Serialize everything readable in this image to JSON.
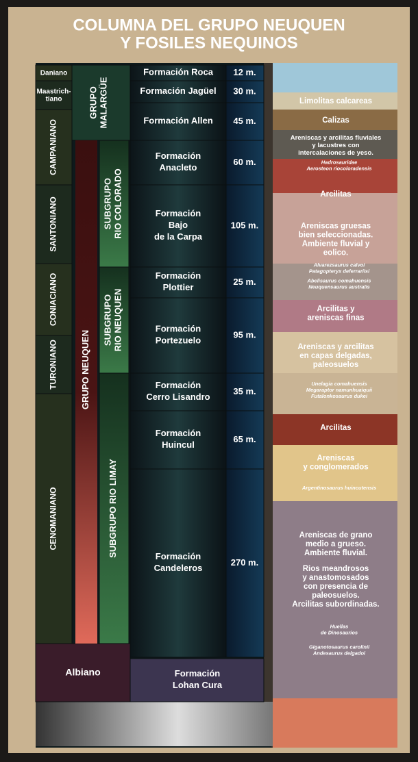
{
  "title": {
    "lines": [
      "COLUMNA DEL GRUPO NEUQUEN",
      "Y FOSILES NEQUINOS"
    ]
  },
  "ages": [
    {
      "lines": [
        "Daniano"
      ]
    },
    {
      "lines": [
        "Maastrich-",
        "tiano"
      ]
    },
    {
      "lines": [
        "CAMPANIANO"
      ]
    },
    {
      "lines": [
        "SANTONIANO"
      ]
    },
    {
      "lines": [
        "CONIACIANO"
      ]
    },
    {
      "lines": [
        "TURONIANO"
      ]
    },
    {
      "lines": [
        "CENOMANIANO"
      ]
    },
    {
      "lines": [
        "Albiano"
      ]
    }
  ],
  "groups": [
    {
      "lines": [
        "GRUPO",
        "MALARGÜE"
      ]
    },
    {
      "lines": [
        "GRUPO  NEUQUEN"
      ]
    }
  ],
  "subgroups": [
    {
      "lines": [
        "SUBGRUPO",
        "RIO COLORADO"
      ]
    },
    {
      "lines": [
        "SUBGRUPO",
        "RIO NEUQUEN"
      ]
    },
    {
      "lines": [
        "SUBGRUPO RIO LIMAY"
      ]
    }
  ],
  "formations": [
    {
      "lines": [
        "Formación Roca"
      ],
      "thickness": "12 m."
    },
    {
      "lines": [
        "Formación Jagüel"
      ],
      "thickness": "30 m."
    },
    {
      "lines": [
        "Formación Allen"
      ],
      "thickness": "45 m."
    },
    {
      "lines": [
        "Formación",
        "Anacleto"
      ],
      "thickness": "60 m."
    },
    {
      "lines": [
        "Formación",
        "Bajo",
        "de la Carpa"
      ],
      "thickness": "105 m."
    },
    {
      "lines": [
        "Formación",
        "Plottier"
      ],
      "thickness": "25 m."
    },
    {
      "lines": [
        "Formación",
        "Portezuelo"
      ],
      "thickness": "95 m."
    },
    {
      "lines": [
        "Formación",
        "Cerro Lisandro"
      ],
      "thickness": "35 m."
    },
    {
      "lines": [
        "Formación",
        "Huincul"
      ],
      "thickness": "65 m."
    },
    {
      "lines": [
        "Formación",
        "Candeleros"
      ],
      "thickness": "270 m."
    },
    {
      "lines": [
        "Formación",
        "Lohan Cura"
      ]
    }
  ],
  "lithology": [
    {
      "lines": [
        "Limolitas calcareas"
      ]
    },
    {
      "lines": [
        "Calizas"
      ]
    },
    {
      "lines": [
        "Areniscas y arcilitas fluviales",
        "y lacustres con",
        "intercalaciones de yeso."
      ]
    },
    {
      "lines": [
        "Arcilitas"
      ]
    },
    {
      "lines": [
        "Areniscas gruesas",
        "bien seleccionadas.",
        "Ambiente fluvial y",
        "eolico."
      ]
    },
    {
      "lines": [
        "Arcilitas y",
        "areniscas finas"
      ]
    },
    {
      "lines": [
        "Areniscas y arcilitas",
        "en capas delgadas,",
        "paleosuelos"
      ]
    },
    {
      "lines": [
        "Arcilitas"
      ]
    },
    {
      "lines": [
        "Areniscas",
        "y conglomerados"
      ]
    },
    {
      "lines": [
        "Areniscas de grano",
        "medio a grueso.",
        "Ambiente fluvial."
      ]
    },
    {
      "lines": [
        "Rios meandrosos",
        "y anastomosados",
        "con presencia de",
        "paleosuelos.",
        "Arcilitas subordinadas."
      ]
    }
  ],
  "fossils": [
    {
      "lines": [
        "Hadrosauridae",
        "Aerosteon riocoloradensis"
      ]
    },
    {
      "lines": [
        "Alvarezsaurus calvoi",
        "Patagopteryx deferrariisi"
      ]
    },
    {
      "lines": [
        "Abelisaurus comahuensis",
        "Neuquensaurus australis"
      ]
    },
    {
      "lines": [
        "Unelagia comahuensis",
        "Megaraptor namunhuaiquii",
        "Futalonkosaurus dukei"
      ]
    },
    {
      "lines": [
        "Argentinosaurus huincutensis"
      ]
    },
    {
      "lines": [
        "Huellas",
        "de Dinosaurios"
      ]
    },
    {
      "lines": [
        "Giganotosaurus carolinii",
        "Andesaurus delgadoi"
      ]
    }
  ]
}
